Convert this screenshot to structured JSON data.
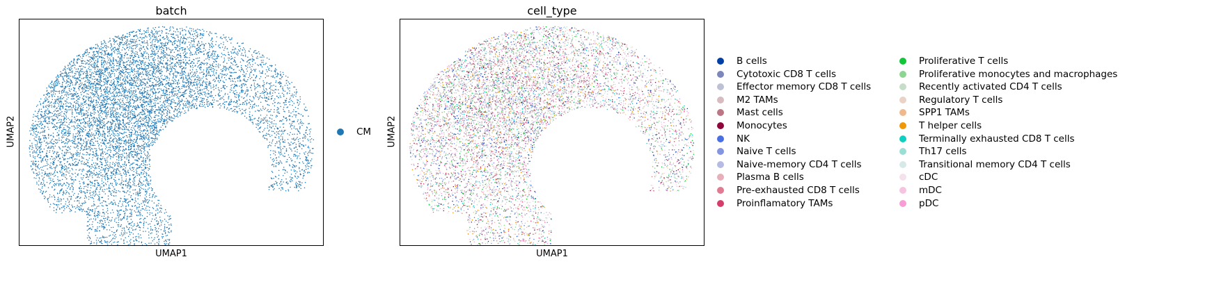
{
  "chart_data": [
    {
      "type": "scatter",
      "title": "batch",
      "xlabel": "UMAP1",
      "ylabel": "UMAP2",
      "legend": {
        "placement": "right",
        "entries": [
          {
            "name": "CM",
            "color": "#1f77b4"
          }
        ]
      }
    },
    {
      "type": "scatter",
      "title": "cell_type",
      "xlabel": "UMAP1",
      "ylabel": "UMAP2",
      "legend": {
        "placement": "right",
        "columns": 2,
        "entries": [
          {
            "name": "B cells",
            "color": "#023fa5"
          },
          {
            "name": "Cytotoxic CD8 T cells",
            "color": "#7d87b9"
          },
          {
            "name": "Effector memory CD8 T cells",
            "color": "#bec1d4"
          },
          {
            "name": "M2 TAMs",
            "color": "#d6bcc0"
          },
          {
            "name": "Mast cells",
            "color": "#bb7784"
          },
          {
            "name": "Monocytes",
            "color": "#8e063b"
          },
          {
            "name": "NK",
            "color": "#4a6fe3"
          },
          {
            "name": "Naive T cells",
            "color": "#8595e1"
          },
          {
            "name": "Naive-memory CD4 T cells",
            "color": "#b5bbe3"
          },
          {
            "name": "Plasma B cells",
            "color": "#e6afb9"
          },
          {
            "name": "Pre-exhausted CD8 T cells",
            "color": "#e07b91"
          },
          {
            "name": "Proinflamatory TAMs",
            "color": "#d33f6a"
          },
          {
            "name": "Proliferative T cells",
            "color": "#11c638"
          },
          {
            "name": "Proliferative monocytes and macrophages",
            "color": "#8dd593"
          },
          {
            "name": "Recently activated CD4 T cells",
            "color": "#c6dec7"
          },
          {
            "name": "Regulatory T cells",
            "color": "#ead3c6"
          },
          {
            "name": "SPP1 TAMs",
            "color": "#f0b98d"
          },
          {
            "name": "T helper cells",
            "color": "#ef9708"
          },
          {
            "name": "Terminally exhausted CD8 T cells",
            "color": "#0fcfc0"
          },
          {
            "name": "Th17 cells",
            "color": "#9cded6"
          },
          {
            "name": "Transitional memory CD4 T cells",
            "color": "#d5eae7"
          },
          {
            "name": "cDC",
            "color": "#f3e1eb"
          },
          {
            "name": "mDC",
            "color": "#f6c4e1"
          },
          {
            "name": "pDC",
            "color": "#f79cd4"
          }
        ]
      }
    }
  ]
}
